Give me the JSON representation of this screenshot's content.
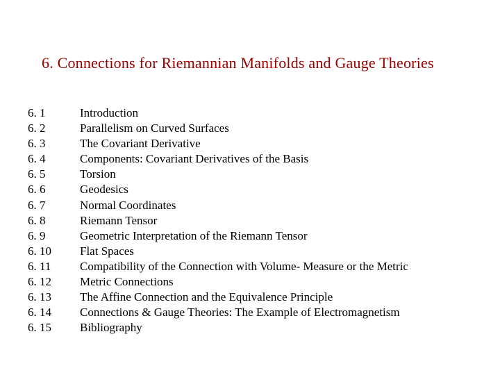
{
  "title": "6. Connections for Riemannian Manifolds and Gauge Theories",
  "title_color": "#990000",
  "text_color": "#000000",
  "background_color": "#ffffff",
  "font_family": "Times New Roman",
  "title_fontsize": 22,
  "body_fontsize": 17,
  "toc": [
    {
      "num": "6. 1",
      "text": "Introduction"
    },
    {
      "num": "6. 2",
      "text": "Parallelism on Curved Surfaces"
    },
    {
      "num": "6. 3",
      "text": "The Covariant Derivative"
    },
    {
      "num": "6. 4",
      "text": "Components: Covariant Derivatives of the Basis"
    },
    {
      "num": "6. 5",
      "text": "Torsion"
    },
    {
      "num": "6. 6",
      "text": "Geodesics"
    },
    {
      "num": "6. 7",
      "text": "Normal Coordinates"
    },
    {
      "num": "6. 8",
      "text": "Riemann Tensor"
    },
    {
      "num": "6. 9",
      "text": "Geometric Interpretation of the Riemann Tensor"
    },
    {
      "num": "6. 10",
      "text": "Flat Spaces"
    },
    {
      "num": "6. 11",
      "text": "Compatibility of the Connection with Volume- Measure or the Metric"
    },
    {
      "num": "6. 12",
      "text": "Metric Connections"
    },
    {
      "num": "6. 13",
      "text": "The Affine Connection and the Equivalence Principle"
    },
    {
      "num": "6. 14",
      "text": "Connections & Gauge Theories: The Example of Electromagnetism"
    },
    {
      "num": "6. 15",
      "text": "Bibliography"
    }
  ]
}
